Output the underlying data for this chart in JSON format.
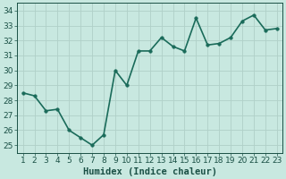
{
  "x": [
    1,
    2,
    3,
    4,
    5,
    6,
    7,
    8,
    9,
    10,
    11,
    12,
    13,
    14,
    15,
    16,
    17,
    18,
    19,
    20,
    21,
    22,
    23
  ],
  "y": [
    28.5,
    28.3,
    27.3,
    27.4,
    26.0,
    25.5,
    25.0,
    25.7,
    30.0,
    29.0,
    31.3,
    31.3,
    32.2,
    31.6,
    31.3,
    33.5,
    31.7,
    31.8,
    32.2,
    33.3,
    33.7,
    32.7,
    32.8
  ],
  "line_color": "#1a6b5a",
  "marker_color": "#1a6b5a",
  "bg_color": "#c8e8e0",
  "grid_color": "#b0d0c8",
  "xlabel": "Humidex (Indice chaleur)",
  "ylabel": "",
  "ylim": [
    24.5,
    34.5
  ],
  "xlim": [
    0.5,
    23.5
  ],
  "yticks": [
    25,
    26,
    27,
    28,
    29,
    30,
    31,
    32,
    33,
    34
  ],
  "xticks": [
    1,
    2,
    3,
    4,
    5,
    6,
    7,
    8,
    9,
    10,
    11,
    12,
    13,
    14,
    15,
    16,
    17,
    18,
    19,
    20,
    21,
    22,
    23
  ],
  "font_color": "#1a5045",
  "tick_fontsize": 6.5,
  "xlabel_fontsize": 7.5,
  "linewidth": 1.2,
  "markersize": 2.5
}
